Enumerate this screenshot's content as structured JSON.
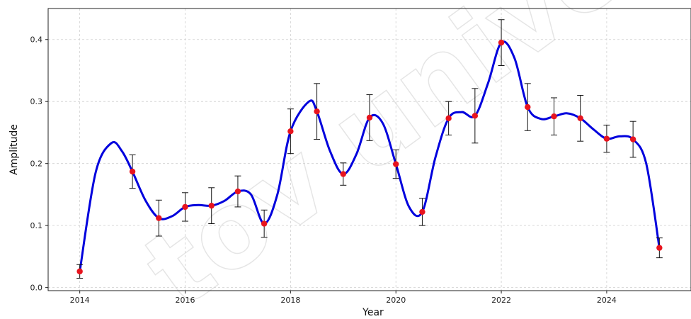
{
  "chart_data": {
    "type": "line",
    "title": "",
    "xlabel": "Year",
    "ylabel": "Amplitude",
    "xlim": [
      2013.4,
      2025.6
    ],
    "ylim": [
      -0.005,
      0.45
    ],
    "xticks": [
      2014,
      2016,
      2018,
      2020,
      2022,
      2024
    ],
    "yticks": [
      0.0,
      0.1,
      0.2,
      0.3,
      0.4
    ],
    "xtick_labels": [
      "2014",
      "2016",
      "2018",
      "2020",
      "2022",
      "2024"
    ],
    "ytick_labels": [
      "0.0",
      "0.1",
      "0.2",
      "0.3",
      "0.4"
    ],
    "grid": true,
    "series": [
      {
        "color": "#0000dd",
        "marker_color": "#e8141e",
        "errorbar_color": "#111111",
        "x": [
          2014,
          2015,
          2015.5,
          2016,
          2016.5,
          2017,
          2017.5,
          2018,
          2018.5,
          2019,
          2019.5,
          2020,
          2020.5,
          2021,
          2021.5,
          2022,
          2022.5,
          2023,
          2023.5,
          2024,
          2024.5,
          2025
        ],
        "y": [
          0.026,
          0.187,
          0.112,
          0.13,
          0.132,
          0.155,
          0.103,
          0.252,
          0.284,
          0.183,
          0.274,
          0.199,
          0.122,
          0.273,
          0.277,
          0.395,
          0.291,
          0.276,
          0.273,
          0.24,
          0.239,
          0.064
        ],
        "yerr": [
          0.011,
          0.027,
          0.029,
          0.023,
          0.029,
          0.025,
          0.022,
          0.036,
          0.045,
          0.018,
          0.037,
          0.023,
          0.022,
          0.027,
          0.044,
          0.037,
          0.038,
          0.03,
          0.037,
          0.022,
          0.029,
          0.016
        ]
      }
    ],
    "smooth_curve": {
      "x": [
        2014,
        2014.3,
        2014.6,
        2014.8,
        2015,
        2015.25,
        2015.5,
        2015.75,
        2016,
        2016.25,
        2016.5,
        2016.75,
        2017,
        2017.25,
        2017.5,
        2017.75,
        2018,
        2018.35,
        2018.5,
        2018.75,
        2019,
        2019.25,
        2019.5,
        2019.75,
        2020,
        2020.25,
        2020.5,
        2020.75,
        2021,
        2021.25,
        2021.5,
        2021.75,
        2022,
        2022.25,
        2022.5,
        2022.75,
        2023,
        2023.25,
        2023.5,
        2023.75,
        2024,
        2024.25,
        2024.5,
        2024.75,
        2025
      ],
      "y": [
        0.026,
        0.185,
        0.233,
        0.22,
        0.187,
        0.14,
        0.112,
        0.115,
        0.13,
        0.133,
        0.132,
        0.14,
        0.155,
        0.15,
        0.103,
        0.15,
        0.252,
        0.3,
        0.284,
        0.22,
        0.183,
        0.215,
        0.274,
        0.265,
        0.199,
        0.13,
        0.122,
        0.21,
        0.273,
        0.283,
        0.277,
        0.33,
        0.395,
        0.37,
        0.291,
        0.272,
        0.276,
        0.281,
        0.273,
        0.255,
        0.24,
        0.244,
        0.239,
        0.2,
        0.064
      ]
    }
  },
  "watermark": {
    "text": "tov univers"
  }
}
